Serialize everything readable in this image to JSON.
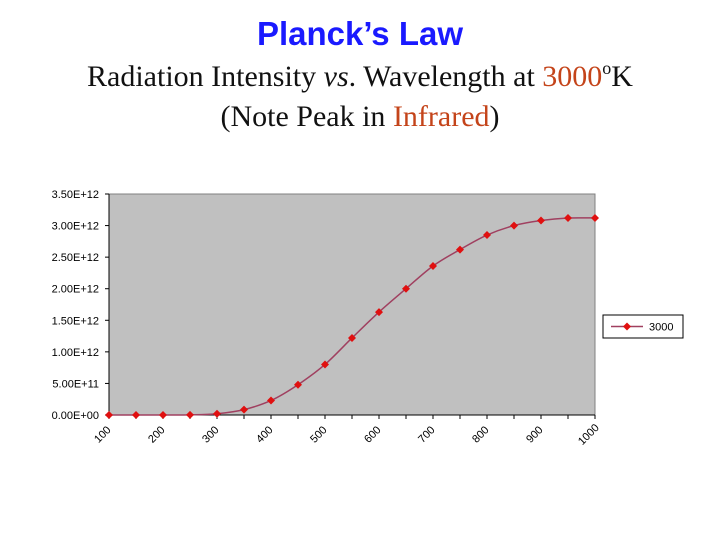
{
  "slide": {
    "title": "Planck’s Law",
    "subtitle_line1": {
      "part1": "Radiation Intensity ",
      "vs": "vs",
      "part2": ". Wavelength at ",
      "temp_value": "3000",
      "temp_unit_sup": "o",
      "temp_unit": "K"
    },
    "subtitle_line2": {
      "open": "(Note Peak in ",
      "highlight": "Infrared",
      "close": ")"
    }
  },
  "colors": {
    "title": "#1a1aff",
    "accent": "#c4441a",
    "plot_bg": "#c0c0c0",
    "series": "#e01010",
    "line": "#a04060"
  },
  "chart_data": {
    "type": "line",
    "title": "",
    "xlabel": "",
    "ylabel": "",
    "categories": [
      "100",
      "",
      "200",
      "",
      "300",
      "",
      "400",
      "",
      "500",
      "",
      "600",
      "",
      "700",
      "",
      "800",
      "",
      "900",
      "",
      "1000"
    ],
    "x_tick_labels": [
      "100",
      "200",
      "300",
      "400",
      "500",
      "600",
      "700",
      "800",
      "900",
      "1000"
    ],
    "y_tick_labels": [
      "3.50E+12",
      "3.00E+12",
      "2.50E+12",
      "2.00E+12",
      "1.50E+12",
      "1.00E+12",
      "5.00E+11",
      "0.00E+00"
    ],
    "ylim": [
      0,
      3500000000000.0
    ],
    "grid": false,
    "legend_position": "right",
    "series": [
      {
        "name": "3000",
        "values": [
          0,
          0,
          0,
          2000000000.0,
          20000000000.0,
          85000000000.0,
          230000000000.0,
          480000000000.0,
          800000000000.0,
          1220000000000.0,
          1630000000000.0,
          2000000000000.0,
          2360000000000.0,
          2620000000000.0,
          2850000000000.0,
          3000000000000.0,
          3080000000000.0,
          3120000000000.0,
          3120000000000.0
        ]
      }
    ]
  }
}
